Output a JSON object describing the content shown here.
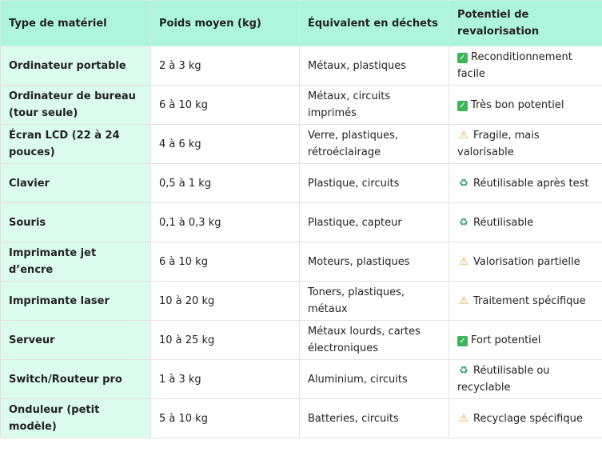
{
  "headers": [
    "Type de matériel",
    "Poids moyen (kg)",
    "Équivalent en déchets",
    "Potentiel de revalorisation"
  ],
  "rows": [
    {
      "type": "Ordinateur portable",
      "poids": "2 à 3 kg",
      "dechets": "Métaux, plastiques",
      "icon": "check-icon",
      "potentiel": "Reconditionnement facile"
    },
    {
      "type": "Ordinateur de bureau (tour seule)",
      "poids": "6 à 10 kg",
      "dechets": "Métaux, circuits imprimés",
      "icon": "check-icon",
      "potentiel": "Très bon potentiel"
    },
    {
      "type": "Écran LCD (22 à 24 pouces)",
      "poids": "4 à 6 kg",
      "dechets": "Verre, plastiques, rétroéclairage",
      "icon": "warning-icon",
      "potentiel": "Fragile, mais valorisable"
    },
    {
      "type": "Clavier",
      "poids": "0,5 à 1 kg",
      "dechets": "Plastique, circuits",
      "icon": "recycle-icon",
      "potentiel": "Réutilisable après test"
    },
    {
      "type": "Souris",
      "poids": "0,1 à 0,3 kg",
      "dechets": "Plastique, capteur",
      "icon": "recycle-icon",
      "potentiel": "Réutilisable"
    },
    {
      "type": "Imprimante jet d’encre",
      "poids": "6 à 10 kg",
      "dechets": "Moteurs, plastiques",
      "icon": "warning-icon",
      "potentiel": "Valorisation partielle"
    },
    {
      "type": "Imprimante laser",
      "poids": "10 à 20 kg",
      "dechets": "Toners, plastiques, métaux",
      "icon": "warning-icon",
      "potentiel": "Traitement spécifique"
    },
    {
      "type": "Serveur",
      "poids": "10 à 25 kg",
      "dechets": "Métaux lourds, cartes électroniques",
      "icon": "check-icon",
      "potentiel": "Fort potentiel"
    },
    {
      "type": "Switch/Routeur pro",
      "poids": "1 à 3 kg",
      "dechets": "Aluminium, circuits",
      "icon": "recycle-icon",
      "potentiel": "Réutilisable ou recyclable"
    },
    {
      "type": "Onduleur (petit modèle)",
      "poids": "5 à 10 kg",
      "dechets": "Batteries, circuits",
      "icon": "warning-icon",
      "potentiel": "Recyclage spécifique"
    }
  ],
  "colors": {
    "header": "#adf5dc",
    "first_column": "#dcfbef"
  }
}
